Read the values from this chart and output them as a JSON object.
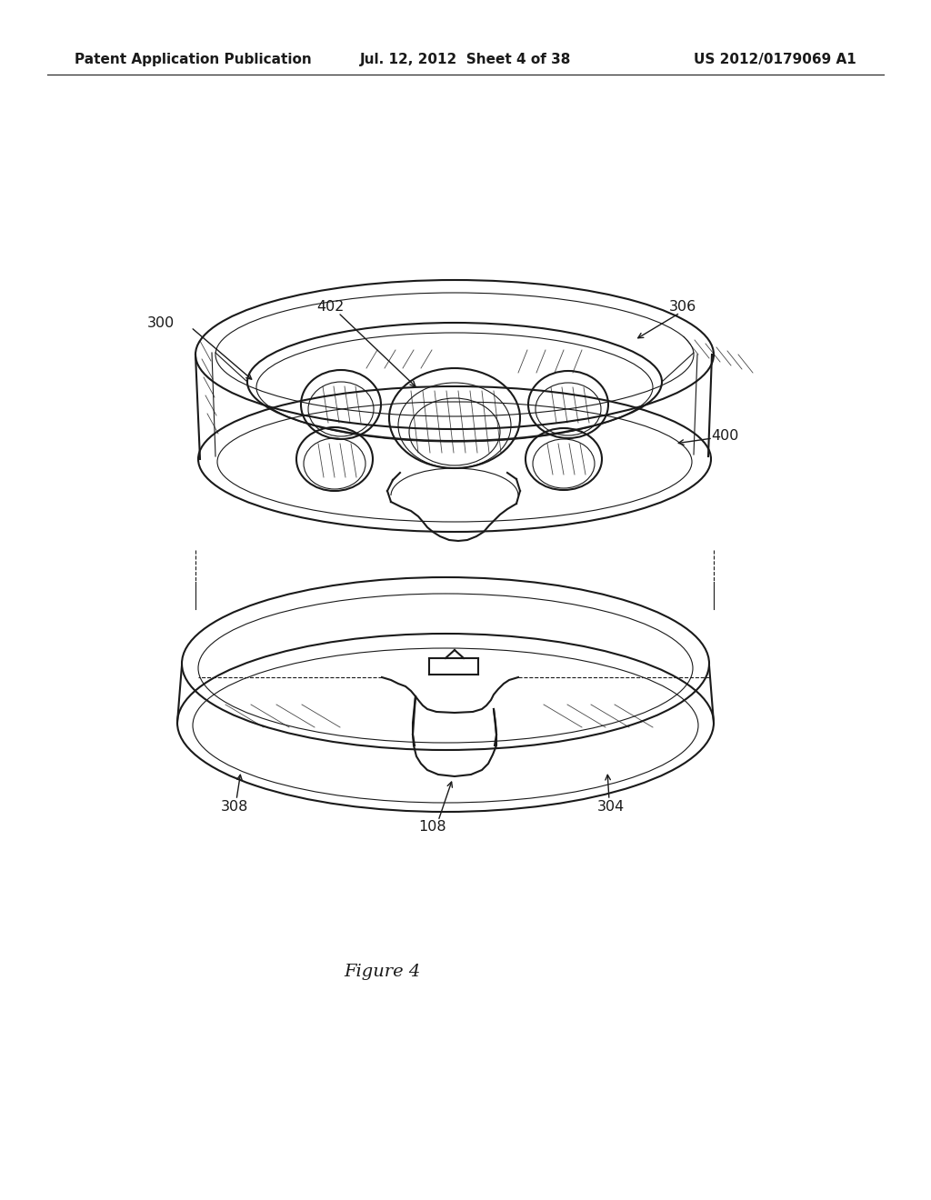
{
  "background_color": "#ffffff",
  "header_left": "Patent Application Publication",
  "header_center": "Jul. 12, 2012  Sheet 4 of 38",
  "header_right": "US 2012/0179069 A1",
  "header_fontsize": 11,
  "caption": "Figure 4",
  "caption_fontsize": 14,
  "text_color": "#1a1a1a",
  "line_color": "#1a1a1a",
  "lw": 1.5,
  "lw_thin": 0.8,
  "lw_hatch": 0.6
}
